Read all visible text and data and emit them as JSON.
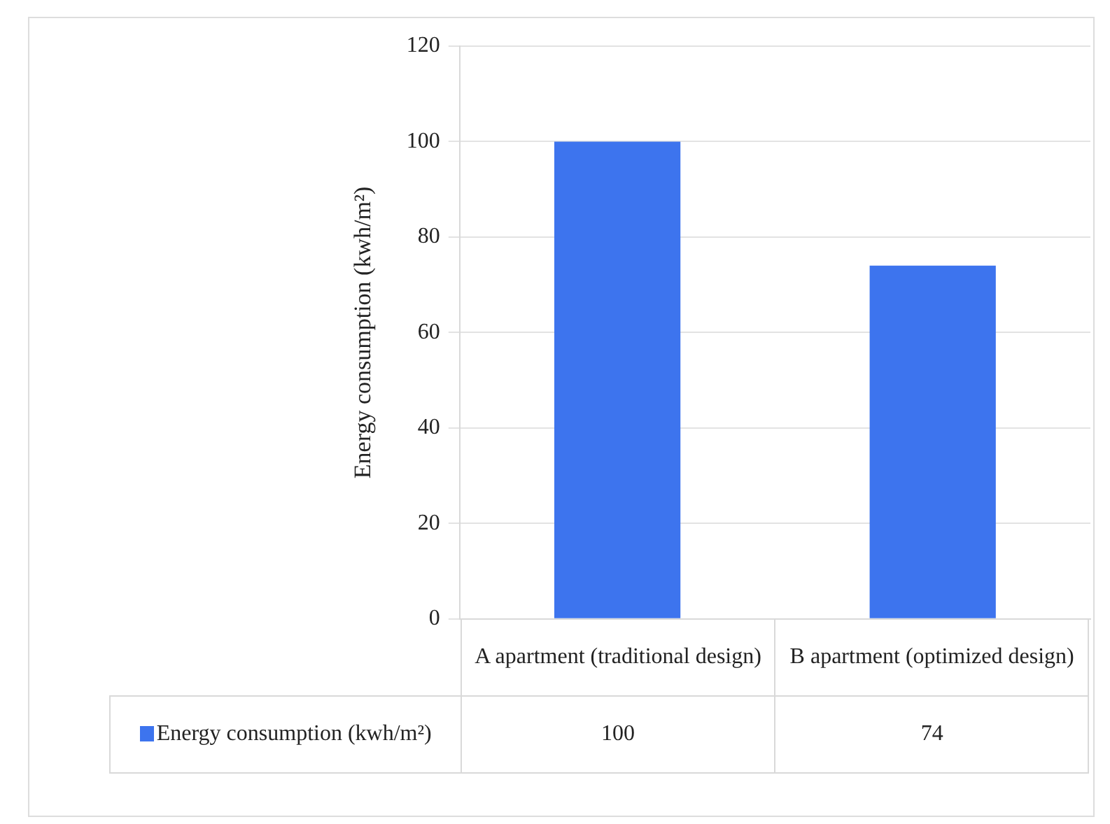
{
  "chart_data": {
    "type": "bar",
    "ylabel": "Energy consumption (kwh/m²)",
    "categories": [
      "A apartment (traditional design)",
      "B apartment (optimized design)"
    ],
    "series": [
      {
        "name": "Energy consumption (kwh/m²)",
        "color": "#3d74ee",
        "values": [
          100,
          74
        ]
      }
    ],
    "ylim": [
      0,
      120
    ],
    "yticks": [
      0,
      20,
      40,
      60,
      80,
      100,
      120
    ],
    "grid": "y",
    "legend": "bottom",
    "data_labels": true
  }
}
